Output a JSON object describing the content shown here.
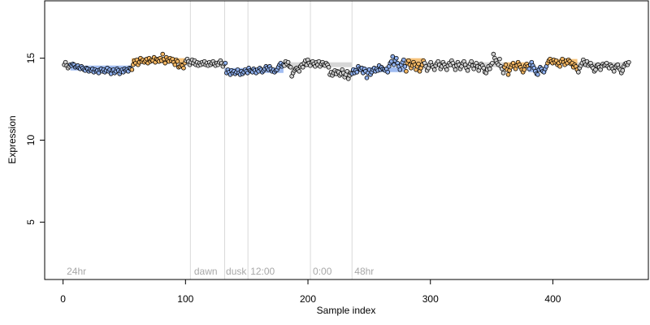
{
  "chart_data": {
    "type": "scatter",
    "xlabel": "Sample index",
    "ylabel": "Expression",
    "xlim": [
      -15,
      478
    ],
    "ylim": [
      1.5,
      18.5
    ],
    "x_ticks": [
      0,
      100,
      200,
      300,
      400
    ],
    "y_ticks": [
      5,
      10,
      15
    ],
    "grid": false,
    "phase_boundaries": [
      104,
      132,
      151,
      202,
      236
    ],
    "phase_labels": [
      {
        "text": "24hr",
        "x": 3
      },
      {
        "text": "dawn",
        "x": 107
      },
      {
        "text": "dusk",
        "x": 133
      },
      {
        "text": "12:00",
        "x": 153
      },
      {
        "text": "0:00",
        "x": 204
      },
      {
        "text": "48hr",
        "x": 238
      }
    ],
    "colors": {
      "high": "#f5b763",
      "low": "#8fb0ee",
      "neutral": "#d0d0d0",
      "outline": "#000000",
      "phase_line": "#d9d9d9",
      "phase_text": "#a8a8a8"
    },
    "segments": [
      {
        "x0": 0,
        "x1": 6,
        "level": 14.6,
        "state": "neutral"
      },
      {
        "x0": 6,
        "x1": 56,
        "level": 14.4,
        "state": "low"
      },
      {
        "x0": 56,
        "x1": 100,
        "level": 14.85,
        "state": "high"
      },
      {
        "x0": 100,
        "x1": 132,
        "level": 14.7,
        "state": "neutral"
      },
      {
        "x0": 132,
        "x1": 180,
        "level": 14.25,
        "state": "low"
      },
      {
        "x0": 180,
        "x1": 236,
        "level": 14.6,
        "state": "neutral"
      },
      {
        "x0": 236,
        "x1": 280,
        "level": 14.3,
        "state": "low"
      },
      {
        "x0": 280,
        "x1": 295,
        "level": 14.85,
        "state": "high"
      },
      {
        "x0": 295,
        "x1": 360,
        "level": 14.6,
        "state": "neutral"
      },
      {
        "x0": 360,
        "x1": 380,
        "level": 14.6,
        "state": "high"
      },
      {
        "x0": 380,
        "x1": 395,
        "level": 14.3,
        "state": "low"
      },
      {
        "x0": 395,
        "x1": 420,
        "level": 14.8,
        "state": "high"
      },
      {
        "x0": 420,
        "x1": 462,
        "level": 14.6,
        "state": "neutral"
      }
    ],
    "samples": {
      "x_start": 1,
      "x_end": 462,
      "values": [
        14.6,
        14.75,
        14.55,
        14.4,
        14.5,
        14.6,
        14.55,
        14.65,
        14.6,
        14.45,
        14.5,
        14.55,
        14.4,
        14.35,
        14.5,
        14.4,
        14.3,
        14.25,
        14.4,
        14.35,
        14.2,
        14.3,
        14.25,
        14.35,
        14.15,
        14.3,
        14.2,
        14.25,
        14.1,
        14.3,
        14.35,
        14.2,
        14.3,
        14.15,
        14.25,
        14.4,
        14.2,
        14.3,
        14.05,
        14.25,
        14.3,
        14.1,
        14.2,
        14.35,
        14.25,
        14.05,
        14.2,
        14.3,
        14.15,
        14.35,
        14.25,
        14.3,
        14.2,
        14.4,
        14.35,
        14.3,
        14.6,
        14.85,
        14.7,
        14.9,
        14.6,
        14.75,
        15.0,
        14.8,
        14.9,
        14.75,
        14.85,
        14.95,
        14.7,
        15.0,
        14.8,
        14.9,
        14.85,
        15.05,
        14.75,
        14.95,
        14.9,
        14.8,
        15.0,
        14.85,
        15.25,
        14.95,
        14.7,
        15.05,
        14.9,
        14.8,
        15.0,
        14.85,
        14.95,
        14.75,
        14.6,
        14.9,
        14.8,
        14.45,
        14.5,
        14.6,
        14.55,
        14.4,
        14.7,
        14.85,
        14.95,
        14.8,
        14.6,
        14.75,
        14.9,
        14.7,
        14.85,
        14.6,
        14.75,
        14.55,
        14.7,
        14.6,
        14.75,
        14.65,
        14.8,
        14.6,
        14.7,
        14.55,
        14.75,
        14.6,
        14.7,
        14.8,
        14.65,
        14.55,
        14.7,
        14.6,
        14.75,
        14.85,
        14.7,
        14.5,
        14.65,
        14.7,
        14.1,
        14.3,
        14.15,
        14.0,
        14.25,
        14.1,
        14.2,
        14.05,
        14.15,
        14.3,
        14.1,
        14.0,
        14.2,
        14.05,
        14.15,
        14.3,
        14.2,
        14.1,
        14.4,
        14.25,
        14.2,
        14.15,
        14.35,
        14.25,
        14.1,
        14.3,
        14.2,
        14.4,
        14.3,
        14.15,
        14.25,
        14.35,
        14.5,
        14.4,
        14.3,
        14.5,
        14.35,
        14.2,
        14.3,
        14.15,
        14.25,
        14.3,
        14.45,
        14.6,
        14.7,
        14.5,
        14.6,
        14.55,
        14.8,
        14.65,
        14.75,
        14.5,
        14.45,
        13.9,
        14.1,
        14.25,
        14.35,
        14.4,
        14.3,
        14.2,
        14.5,
        14.6,
        14.45,
        14.7,
        14.85,
        14.6,
        14.9,
        14.7,
        14.55,
        14.75,
        14.8,
        14.65,
        14.5,
        14.75,
        14.6,
        14.8,
        14.5,
        14.65,
        14.75,
        14.6,
        14.55,
        14.7,
        14.6,
        14.45,
        14.0,
        14.15,
        13.95,
        14.1,
        14.25,
        14.05,
        14.2,
        14.15,
        13.95,
        14.05,
        14.3,
        14.1,
        13.85,
        14.0,
        14.2,
        13.75,
        13.95,
        14.1,
        14.05,
        14.3,
        14.1,
        14.25,
        14.15,
        14.5,
        14.35,
        14.3,
        14.4,
        14.1,
        14.35,
        14.2,
        13.8,
        14.1,
        14.3,
        14.0,
        14.15,
        14.3,
        14.4,
        14.2,
        14.35,
        14.25,
        14.55,
        14.3,
        14.45,
        14.35,
        14.3,
        14.25,
        14.35,
        14.15,
        14.5,
        14.7,
        14.8,
        15.1,
        14.6,
        14.85,
        15.0,
        14.7,
        14.5,
        14.3,
        14.6,
        14.75,
        14.9,
        14.5,
        14.2,
        14.7,
        14.85,
        14.6,
        14.4,
        14.55,
        14.75,
        14.6,
        14.3,
        14.5,
        14.65,
        14.2,
        14.4,
        14.6,
        14.85,
        14.7,
        14.5,
        14.25,
        14.4,
        14.6,
        14.75,
        14.55,
        14.45,
        14.3,
        14.55,
        14.7,
        14.8,
        14.6,
        14.35,
        14.5,
        14.75,
        14.6,
        14.45,
        14.3,
        14.55,
        14.7,
        14.6,
        14.85,
        14.7,
        14.5,
        14.3,
        14.55,
        14.75,
        14.6,
        14.35,
        14.5,
        14.7,
        14.8,
        14.6,
        14.4,
        14.25,
        14.5,
        14.65,
        14.8,
        14.55,
        14.35,
        14.6,
        14.7,
        14.5,
        14.25,
        14.45,
        14.65,
        14.55,
        14.4,
        14.15,
        14.1,
        14.3,
        14.5,
        14.35,
        14.6,
        14.7,
        15.25,
        15.0,
        14.85,
        14.7,
        14.6,
        14.95,
        14.5,
        14.35,
        14.1,
        14.45,
        14.6,
        14.3,
        14.0,
        14.25,
        14.45,
        14.6,
        14.7,
        14.5,
        14.35,
        14.55,
        14.75,
        14.6,
        14.45,
        14.3,
        14.15,
        14.3,
        14.55,
        14.65,
        14.5,
        14.35,
        14.6,
        14.75,
        14.55,
        14.4,
        14.2,
        14.05,
        14.0,
        14.3,
        14.45,
        14.35,
        14.2,
        14.15,
        14.35,
        14.5,
        14.7,
        14.85,
        14.95,
        14.8,
        14.7,
        14.9,
        14.75,
        14.85,
        14.6,
        14.7,
        14.5,
        14.8,
        14.95,
        14.75,
        14.6,
        14.85,
        14.7,
        14.9,
        14.8,
        14.65,
        14.7,
        14.45,
        14.6,
        14.5,
        14.3,
        14.15,
        14.4,
        14.55,
        14.7,
        14.9,
        14.75,
        14.6,
        14.8,
        14.55,
        14.65,
        14.7,
        14.5,
        14.4,
        14.2,
        14.3,
        14.55,
        14.6,
        14.45,
        14.3,
        14.5,
        14.65,
        14.55,
        14.6,
        14.7,
        14.5,
        14.4,
        14.6,
        14.5,
        14.35,
        14.2,
        14.45,
        14.55,
        14.6,
        14.4,
        14.3,
        14.1,
        14.25,
        14.5,
        14.65,
        14.7,
        14.6,
        14.75
      ]
    }
  }
}
